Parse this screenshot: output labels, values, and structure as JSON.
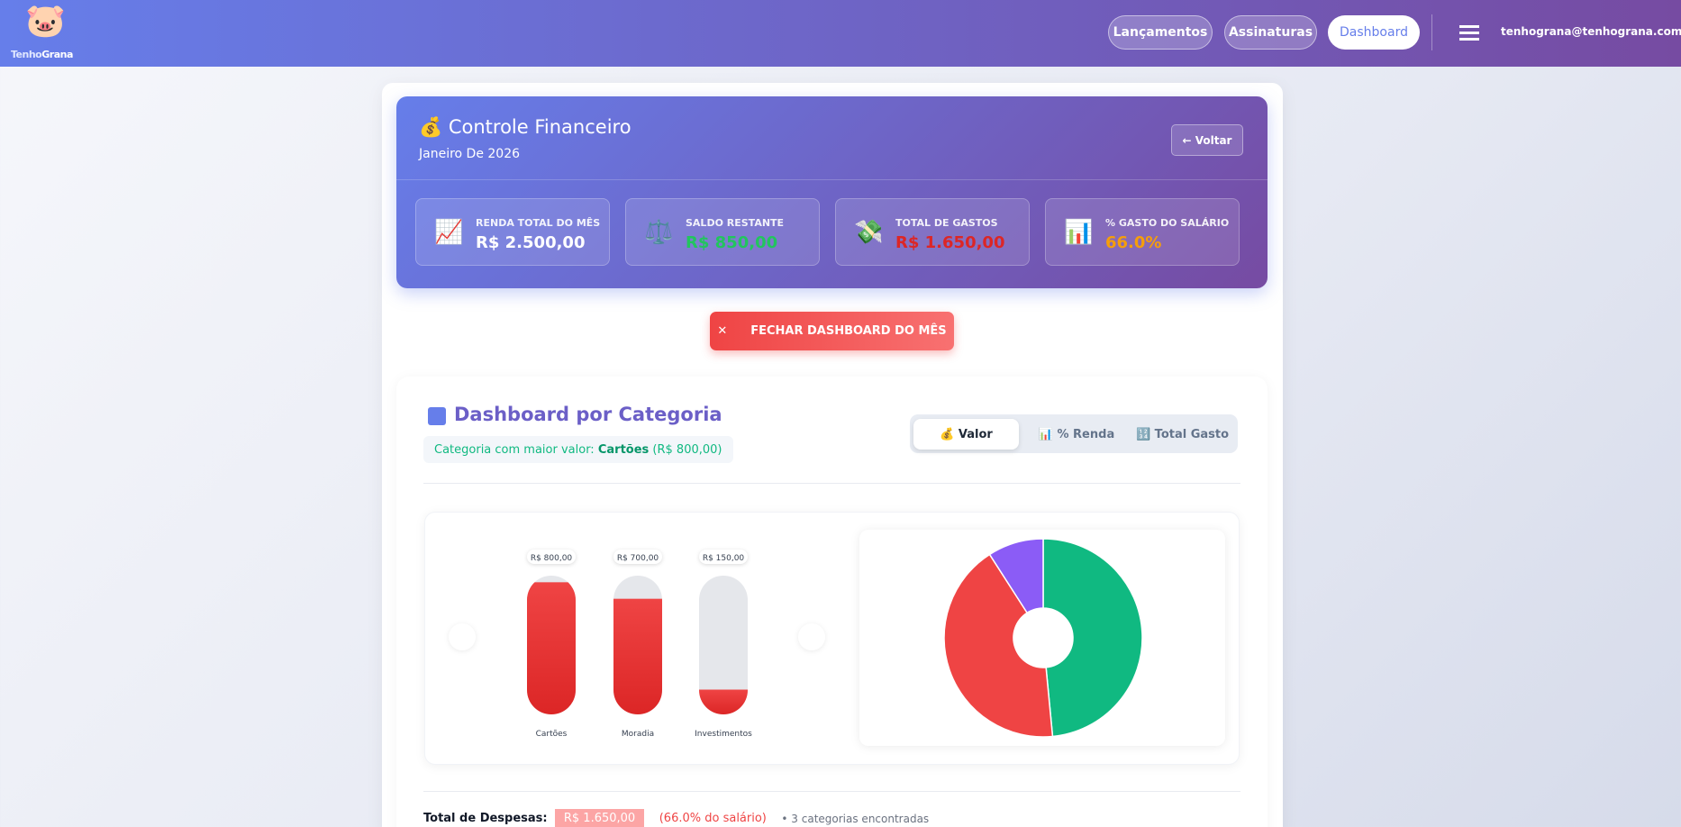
{
  "nav": {
    "logo_icon": "🐷",
    "logo_part1": "Tenho",
    "logo_part2": "Grana",
    "links": [
      "Lançamentos",
      "Assinaturas",
      "Dashboard"
    ],
    "user": "tenhograna@tenhograna.com.br"
  },
  "header": {
    "icon": "💰",
    "title": "Controle Financeiro",
    "subtitle": "Janeiro De 2026",
    "back": "← Voltar"
  },
  "stats": [
    {
      "icon": "📈",
      "label": "RENDA TOTAL DO MÊS",
      "value": "R$ 2.500,00",
      "color": "#ffffff"
    },
    {
      "icon": "⚖️",
      "label": "SALDO RESTANTE",
      "value": "R$ 850,00",
      "color": "#22c55e"
    },
    {
      "icon": "💸",
      "label": "TOTAL DE GASTOS",
      "value": "R$ 1.650,00",
      "color": "#dc2626"
    },
    {
      "icon": "📊",
      "label": "% GASTO DO SALÁRIO",
      "value": "66.0%",
      "color": "#f59e0b"
    }
  ],
  "close_button": {
    "icon": "✕",
    "label": "FECHAR DASHBOARD DO MÊS"
  },
  "dashboard": {
    "title": "Dashboard por Categoria",
    "highlight_prefix": "Categoria com maior valor:",
    "highlight_name": "Cartões",
    "highlight_value": "(R$ 800,00)",
    "tabs": [
      {
        "icon": "💰",
        "label": "Valor"
      },
      {
        "icon": "📊",
        "label": "% Renda"
      },
      {
        "icon": "🔢",
        "label": "Total Gasto"
      }
    ]
  },
  "chart_data": [
    {
      "type": "bar",
      "categories": [
        "Cartões",
        "Moradia",
        "Investimentos"
      ],
      "values": [
        800,
        700,
        150
      ],
      "value_labels": [
        "R$ 800,00",
        "R$ 700,00",
        "R$ 150,00"
      ],
      "ylim": [
        0,
        840
      ],
      "color": "#e5262b"
    },
    {
      "type": "pie",
      "categories": [
        "Cartões",
        "Moradia",
        "Investimentos"
      ],
      "values": [
        800,
        700,
        150
      ],
      "colors": [
        "#10b981",
        "#ef4444",
        "#8b5cf6"
      ]
    }
  ],
  "footer": {
    "label": "Total de Despesas:",
    "total": "R$ 1.650,00",
    "percent": "(66.0% do salário)",
    "count": "• 3 categorias encontradas"
  }
}
